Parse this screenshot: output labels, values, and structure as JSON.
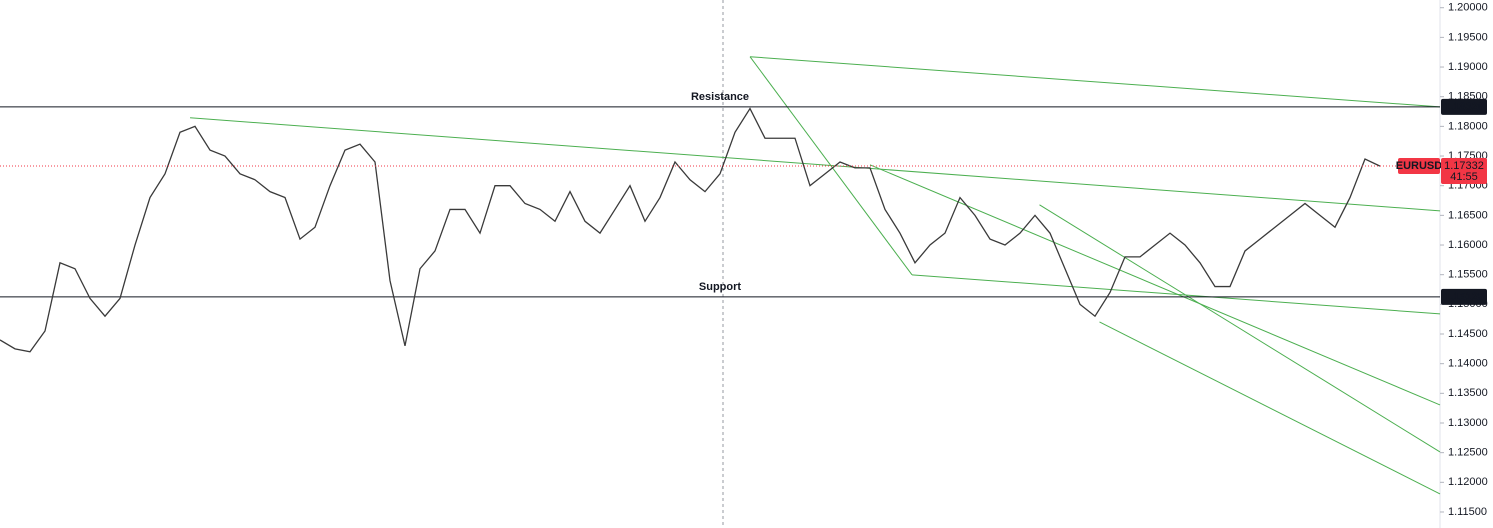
{
  "chart_data": {
    "type": "line",
    "x": [
      0,
      1,
      2,
      3,
      4,
      5,
      6,
      7,
      8,
      9,
      10,
      11,
      12,
      13,
      14,
      15,
      16,
      17,
      18,
      19,
      20,
      21,
      22,
      23,
      24,
      25,
      26,
      27,
      28,
      29,
      30,
      31,
      32,
      33,
      34,
      35,
      36,
      37,
      38,
      39,
      40,
      41,
      42,
      43,
      44,
      45,
      46,
      47,
      48,
      49,
      50,
      51,
      52,
      53,
      54,
      55,
      56,
      57,
      58,
      59,
      60,
      61,
      62,
      63,
      64,
      65,
      66,
      67,
      68,
      69,
      70,
      71,
      72,
      73,
      74,
      75,
      76,
      77,
      78,
      79,
      80,
      81,
      82,
      83,
      84,
      85,
      86,
      87,
      88,
      89,
      90,
      91,
      92
    ],
    "series": [
      {
        "name": "EURUSD",
        "color": "#3a3a3a",
        "values": [
          1.144,
          1.1425,
          1.142,
          1.1455,
          1.157,
          1.156,
          1.151,
          1.148,
          1.151,
          1.16,
          1.168,
          1.172,
          1.179,
          1.18,
          1.176,
          1.175,
          1.172,
          1.171,
          1.169,
          1.168,
          1.161,
          1.163,
          1.17,
          1.176,
          1.177,
          1.174,
          1.154,
          1.143,
          1.156,
          1.159,
          1.166,
          1.166,
          1.162,
          1.17,
          1.17,
          1.167,
          1.166,
          1.164,
          1.169,
          1.164,
          1.162,
          1.166,
          1.17,
          1.164,
          1.168,
          1.174,
          1.171,
          1.169,
          1.172,
          1.179,
          1.183,
          1.178,
          1.178,
          1.178,
          1.17,
          1.172,
          1.174,
          1.173,
          1.173,
          1.166,
          1.162,
          1.157,
          1.16,
          1.162,
          1.168,
          1.165,
          1.161,
          1.16,
          1.162,
          1.165,
          1.162,
          1.156,
          1.15,
          1.148,
          1.152,
          1.158,
          1.158,
          1.16,
          1.162,
          1.16,
          1.157,
          1.153,
          1.153,
          1.159,
          1.161,
          1.163,
          1.165,
          1.167,
          1.165,
          1.163,
          1.168,
          1.1745,
          1.1733
        ]
      }
    ],
    "xlim": [
      0,
      96
    ],
    "ylim": [
      1.1123,
      1.2013
    ],
    "yticks": [
      {
        "value": 1.2,
        "label": "1.20000"
      },
      {
        "value": 1.195,
        "label": "1.19500"
      },
      {
        "value": 1.19,
        "label": "1.19000"
      },
      {
        "value": 1.185,
        "label": "1.18500"
      },
      {
        "value": 1.18,
        "label": "1.18000"
      },
      {
        "value": 1.175,
        "label": "1.17500"
      },
      {
        "value": 1.17,
        "label": "1.17000"
      },
      {
        "value": 1.165,
        "label": "1.16500"
      },
      {
        "value": 1.16,
        "label": "1.16000"
      },
      {
        "value": 1.155,
        "label": "1.15500"
      },
      {
        "value": 1.15,
        "label": "1.15000"
      },
      {
        "value": 1.145,
        "label": "1.14500"
      },
      {
        "value": 1.14,
        "label": "1.14000"
      },
      {
        "value": 1.135,
        "label": "1.13500"
      },
      {
        "value": 1.13,
        "label": "1.13000"
      },
      {
        "value": 1.125,
        "label": "1.12500"
      },
      {
        "value": 1.12,
        "label": "1.12000"
      },
      {
        "value": 1.115,
        "label": "1.11500"
      }
    ],
    "levels": [
      {
        "label": "Resistance",
        "value": 1.18328,
        "label_color": "#2962ff"
      },
      {
        "label": "Support",
        "value": 1.15125,
        "label_color": "#f23645"
      }
    ],
    "last_price": {
      "value": 1.17332,
      "countdown": "41:55",
      "color": "#f23645"
    },
    "trendline_color": "#4caf50",
    "trendlines": [
      {
        "x": [
          50,
          96
        ],
        "y": [
          1.19174,
          1.18328
        ]
      },
      {
        "x": [
          12.67,
          96
        ],
        "y": [
          1.18145,
          1.16576
        ]
      },
      {
        "x": [
          50,
          60.8
        ],
        "y": [
          1.19174,
          1.15497
        ]
      },
      {
        "x": [
          60.8,
          96
        ],
        "y": [
          1.15497,
          1.14839
        ]
      },
      {
        "x": [
          58,
          96
        ],
        "y": [
          1.17352,
          1.13305
        ]
      },
      {
        "x": [
          69.3,
          96
        ],
        "y": [
          1.16678,
          1.12512
        ]
      },
      {
        "x": [
          73.3,
          96
        ],
        "y": [
          1.14704,
          1.11804
        ]
      }
    ]
  }
}
